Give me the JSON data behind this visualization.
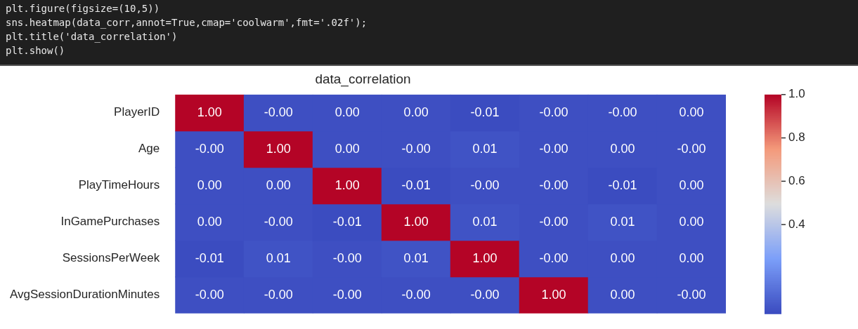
{
  "chart_data": {
    "type": "heatmap",
    "title": "data_correlation",
    "categories": [
      null,
      null,
      null,
      null,
      null,
      null,
      null,
      null
    ],
    "y_categories": [
      "PlayerID",
      "Age",
      "PlayTimeHours",
      "InGamePurchases",
      "SessionsPerWeek",
      "AvgSessionDurationMinutes"
    ],
    "cells": [
      [
        1.0,
        0.0,
        0.0,
        0.0,
        -0.01,
        0.0,
        0.0,
        0.0
      ],
      [
        0.0,
        1.0,
        0.0,
        0.0,
        0.01,
        0.0,
        0.0,
        0.0
      ],
      [
        0.0,
        0.0,
        1.0,
        -0.01,
        0.0,
        0.0,
        -0.01,
        0.0
      ],
      [
        0.0,
        0.0,
        -0.01,
        1.0,
        0.01,
        0.0,
        0.01,
        0.0
      ],
      [
        -0.01,
        0.01,
        0.0,
        0.01,
        1.0,
        0.0,
        0.0,
        0.0
      ],
      [
        0.0,
        0.0,
        0.0,
        0.0,
        0.0,
        1.0,
        0.0,
        0.0
      ]
    ],
    "cell_labels": [
      [
        "1.00",
        "-0.00",
        "0.00",
        "0.00",
        "-0.01",
        "-0.00",
        "-0.00",
        "0.00"
      ],
      [
        "-0.00",
        "1.00",
        "0.00",
        "-0.00",
        "0.01",
        "-0.00",
        "0.00",
        "-0.00"
      ],
      [
        "0.00",
        "0.00",
        "1.00",
        "-0.01",
        "-0.00",
        "-0.00",
        "-0.01",
        "0.00"
      ],
      [
        "0.00",
        "-0.00",
        "-0.01",
        "1.00",
        "0.01",
        "-0.00",
        "0.01",
        "0.00"
      ],
      [
        "-0.01",
        "0.01",
        "-0.00",
        "0.01",
        "1.00",
        "-0.00",
        "0.00",
        "0.00"
      ],
      [
        "-0.00",
        "-0.00",
        "-0.00",
        "-0.00",
        "-0.00",
        "1.00",
        "0.00",
        "-0.00"
      ]
    ],
    "clim": [
      -0.01,
      1.0
    ],
    "cticks": [
      0.4,
      0.6,
      0.8,
      {
        "value": 1,
        "label": "1.0"
      }
    ],
    "annotations": [
      "plt.figure(figsize=(10,5))",
      "sns.heatmap(data_corr,annot=True,cmap='coolwarm',fmt='.02f');",
      "plt.title('data_correlation')",
      "plt.show()"
    ]
  }
}
